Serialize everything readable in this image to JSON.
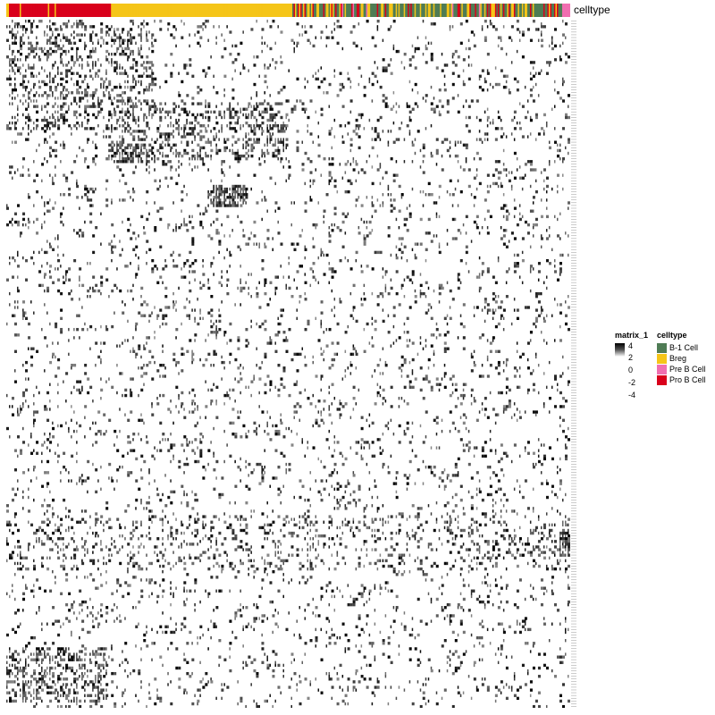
{
  "chart_data": {
    "type": "heatmap",
    "annotation_name": "celltype",
    "value_legend": {
      "title": "matrix_1",
      "ticks": [
        "4",
        "2",
        "0",
        "-2",
        "-4"
      ],
      "colors": {
        "high": "#000000",
        "mid": "#ffffff",
        "low": "#ffffff"
      }
    },
    "celltype_legend": {
      "title": "celltype",
      "entries": [
        {
          "label": "B-1 Cell",
          "color": "#4f7c55"
        },
        {
          "label": "Breg",
          "color": "#f5c518"
        },
        {
          "label": "Pre B Cell",
          "color": "#f06fb0"
        },
        {
          "label": "Pro B Cell",
          "color": "#d9001b"
        }
      ]
    },
    "column_groups": [
      {
        "celltype": "Pro B Cell",
        "fraction": 0.185
      },
      {
        "celltype": "Breg",
        "fraction": 0.32
      },
      {
        "celltype": "mixed",
        "fraction": 0.48
      },
      {
        "celltype": "Pre B Cell",
        "fraction": 0.015
      }
    ]
  }
}
